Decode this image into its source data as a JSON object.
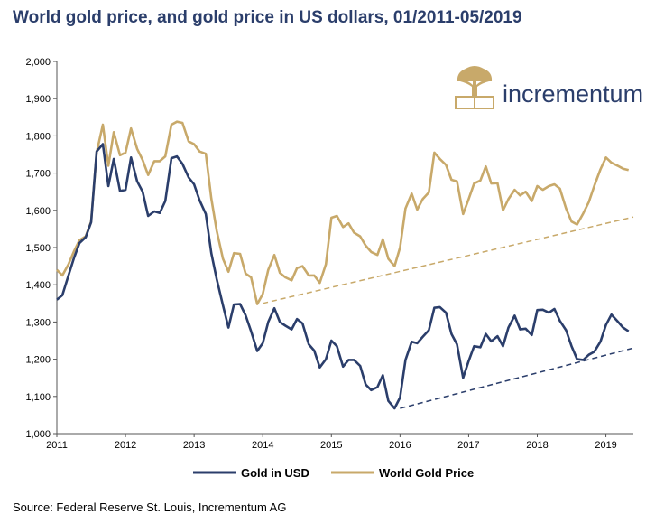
{
  "title": "World gold price, and gold price in US dollars, 01/2011-05/2019",
  "source": "Source: Federal Reserve St. Louis, Incrementum AG",
  "brand": {
    "name": "incrementum",
    "logo_icon": "tree-icon",
    "logo_color": "#c8a96a",
    "text_color": "#2b3e6b"
  },
  "chart_data": {
    "type": "line",
    "title": "World gold price, and gold price in US dollars, 01/2011-05/2019",
    "xlabel": "",
    "ylabel": "",
    "xlim": [
      2011,
      2019.4
    ],
    "ylim": [
      1000,
      2000
    ],
    "y_ticks": [
      "1,000",
      "1,100",
      "1,200",
      "1,300",
      "1,400",
      "1,500",
      "1,600",
      "1,700",
      "1,800",
      "1,900",
      "2,000"
    ],
    "x_ticks": [
      "2011",
      "2012",
      "2013",
      "2014",
      "2015",
      "2016",
      "2017",
      "2018",
      "2019"
    ],
    "grid": false,
    "legend_position": "bottom",
    "series": [
      {
        "name": "Gold in USD",
        "color": "#2b3e6b",
        "x": [
          2011.0,
          2011.08,
          2011.17,
          2011.25,
          2011.33,
          2011.42,
          2011.5,
          2011.58,
          2011.67,
          2011.75,
          2011.83,
          2011.92,
          2012.0,
          2012.08,
          2012.17,
          2012.25,
          2012.33,
          2012.42,
          2012.5,
          2012.58,
          2012.67,
          2012.75,
          2012.83,
          2012.92,
          2013.0,
          2013.08,
          2013.17,
          2013.25,
          2013.33,
          2013.42,
          2013.5,
          2013.58,
          2013.67,
          2013.75,
          2013.83,
          2013.92,
          2014.0,
          2014.08,
          2014.17,
          2014.25,
          2014.33,
          2014.42,
          2014.5,
          2014.58,
          2014.67,
          2014.75,
          2014.83,
          2014.92,
          2015.0,
          2015.08,
          2015.17,
          2015.25,
          2015.33,
          2015.42,
          2015.5,
          2015.58,
          2015.67,
          2015.75,
          2015.83,
          2015.92,
          2016.0,
          2016.08,
          2016.17,
          2016.25,
          2016.33,
          2016.42,
          2016.5,
          2016.58,
          2016.67,
          2016.75,
          2016.83,
          2016.92,
          2017.0,
          2017.08,
          2017.17,
          2017.25,
          2017.33,
          2017.42,
          2017.5,
          2017.58,
          2017.67,
          2017.75,
          2017.83,
          2017.92,
          2018.0,
          2018.08,
          2018.17,
          2018.25,
          2018.33,
          2018.42,
          2018.5,
          2018.58,
          2018.67,
          2018.75,
          2018.83,
          2018.92,
          2019.0,
          2019.08,
          2019.17,
          2019.25,
          2019.33
        ],
        "values": [
          1360,
          1372,
          1425,
          1472,
          1512,
          1528,
          1568,
          1758,
          1778,
          1665,
          1738,
          1652,
          1655,
          1742,
          1678,
          1650,
          1585,
          1597,
          1593,
          1625,
          1740,
          1745,
          1725,
          1688,
          1670,
          1627,
          1590,
          1485,
          1415,
          1345,
          1285,
          1347,
          1348,
          1318,
          1275,
          1222,
          1243,
          1300,
          1337,
          1300,
          1290,
          1280,
          1308,
          1296,
          1240,
          1223,
          1178,
          1200,
          1250,
          1235,
          1180,
          1198,
          1198,
          1182,
          1132,
          1117,
          1125,
          1157,
          1088,
          1068,
          1097,
          1198,
          1247,
          1243,
          1260,
          1278,
          1338,
          1340,
          1325,
          1268,
          1240,
          1150,
          1195,
          1235,
          1232,
          1268,
          1248,
          1262,
          1235,
          1285,
          1317,
          1280,
          1282,
          1265,
          1332,
          1333,
          1325,
          1335,
          1303,
          1278,
          1235,
          1200,
          1198,
          1212,
          1220,
          1247,
          1292,
          1320,
          1302,
          1285,
          1275
        ]
      },
      {
        "name": "World Gold Price",
        "color": "#c8a96a",
        "x": [
          2011.0,
          2011.08,
          2011.17,
          2011.25,
          2011.33,
          2011.42,
          2011.5,
          2011.58,
          2011.67,
          2011.75,
          2011.83,
          2011.92,
          2012.0,
          2012.08,
          2012.17,
          2012.25,
          2012.33,
          2012.42,
          2012.5,
          2012.58,
          2012.67,
          2012.75,
          2012.83,
          2012.92,
          2013.0,
          2013.08,
          2013.17,
          2013.25,
          2013.33,
          2013.42,
          2013.5,
          2013.58,
          2013.67,
          2013.75,
          2013.83,
          2013.92,
          2014.0,
          2014.08,
          2014.17,
          2014.25,
          2014.33,
          2014.42,
          2014.5,
          2014.58,
          2014.67,
          2014.75,
          2014.83,
          2014.92,
          2015.0,
          2015.08,
          2015.17,
          2015.25,
          2015.33,
          2015.42,
          2015.5,
          2015.58,
          2015.67,
          2015.75,
          2015.83,
          2015.92,
          2016.0,
          2016.08,
          2016.17,
          2016.25,
          2016.33,
          2016.42,
          2016.5,
          2016.58,
          2016.67,
          2016.75,
          2016.83,
          2016.92,
          2017.0,
          2017.08,
          2017.17,
          2017.25,
          2017.33,
          2017.42,
          2017.5,
          2017.58,
          2017.67,
          2017.75,
          2017.83,
          2017.92,
          2018.0,
          2018.08,
          2018.17,
          2018.25,
          2018.33,
          2018.42,
          2018.5,
          2018.58,
          2018.67,
          2018.75,
          2018.83,
          2018.92,
          2019.0,
          2019.08,
          2019.17,
          2019.25,
          2019.33
        ],
        "values": [
          1440,
          1425,
          1455,
          1490,
          1520,
          1530,
          1570,
          1755,
          1830,
          1720,
          1810,
          1748,
          1755,
          1820,
          1765,
          1735,
          1695,
          1732,
          1732,
          1745,
          1830,
          1838,
          1835,
          1785,
          1778,
          1758,
          1752,
          1632,
          1545,
          1470,
          1435,
          1485,
          1483,
          1430,
          1420,
          1348,
          1375,
          1440,
          1480,
          1432,
          1420,
          1412,
          1445,
          1450,
          1425,
          1425,
          1405,
          1455,
          1580,
          1585,
          1555,
          1565,
          1540,
          1530,
          1505,
          1488,
          1480,
          1522,
          1470,
          1450,
          1500,
          1605,
          1645,
          1602,
          1630,
          1648,
          1755,
          1738,
          1722,
          1682,
          1678,
          1590,
          1630,
          1672,
          1680,
          1718,
          1672,
          1673,
          1600,
          1630,
          1655,
          1640,
          1650,
          1625,
          1665,
          1655,
          1665,
          1670,
          1658,
          1605,
          1570,
          1562,
          1592,
          1622,
          1665,
          1710,
          1742,
          1728,
          1720,
          1712,
          1708
        ]
      },
      {
        "name": "",
        "color": "#c8a96a",
        "dashed": true,
        "x": [
          2014.0,
          2019.4
        ],
        "values": [
          1350,
          1582
        ]
      },
      {
        "name": "",
        "color": "#2b3e6b",
        "dashed": true,
        "x": [
          2016.0,
          2019.4
        ],
        "values": [
          1068,
          1230
        ]
      }
    ]
  }
}
